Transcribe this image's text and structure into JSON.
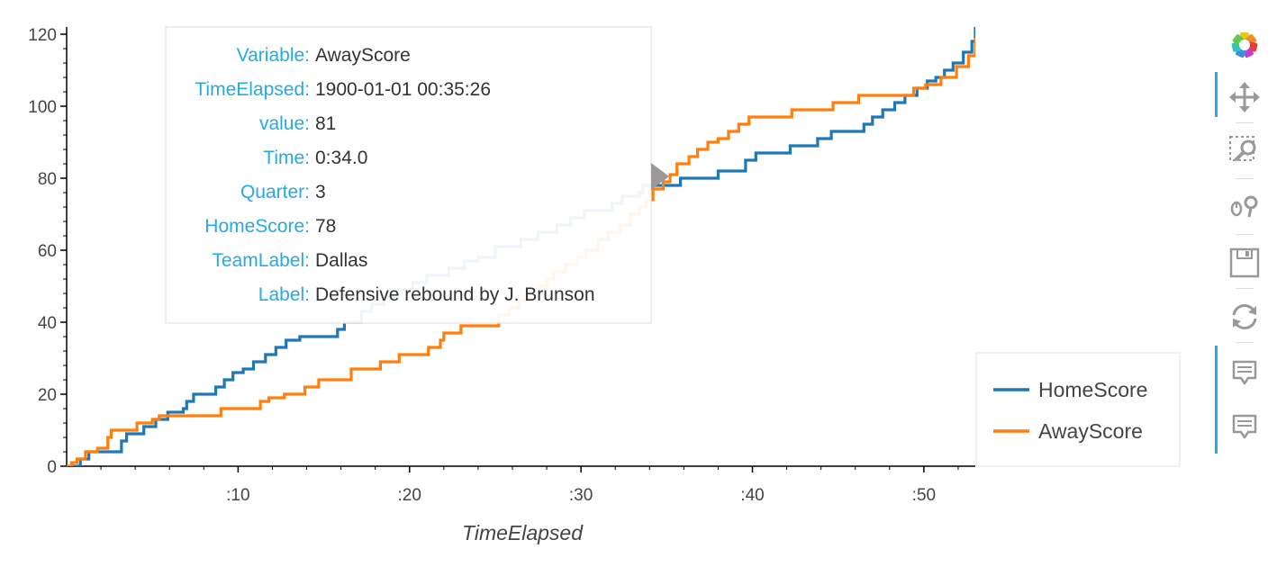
{
  "chart_data": {
    "type": "line",
    "xlabel": "TimeElapsed",
    "x_unit": "minutes",
    "xlim": [
      0,
      53
    ],
    "ylim": [
      0,
      122
    ],
    "x_ticks": [
      {
        "v": 10,
        "label": ":10"
      },
      {
        "v": 20,
        "label": ":20"
      },
      {
        "v": 30,
        "label": ":30"
      },
      {
        "v": 40,
        "label": ":40"
      },
      {
        "v": 50,
        "label": ":50"
      }
    ],
    "y_ticks": [
      0,
      20,
      40,
      60,
      80,
      100,
      120
    ],
    "legend_position": "right",
    "series": [
      {
        "name": "HomeScore",
        "color": "#1f77b4",
        "points": [
          [
            0,
            0
          ],
          [
            0.8,
            2
          ],
          [
            1.3,
            4
          ],
          [
            2.5,
            4
          ],
          [
            3.2,
            7
          ],
          [
            3.5,
            9
          ],
          [
            4.5,
            11
          ],
          [
            5.2,
            13
          ],
          [
            5.9,
            15
          ],
          [
            6.8,
            16
          ],
          [
            7.0,
            18
          ],
          [
            7.4,
            20
          ],
          [
            8.7,
            22
          ],
          [
            9.2,
            24
          ],
          [
            9.7,
            26
          ],
          [
            10.3,
            27
          ],
          [
            10.9,
            29
          ],
          [
            11.6,
            31
          ],
          [
            12.2,
            33
          ],
          [
            12.8,
            35
          ],
          [
            13.6,
            36
          ],
          [
            14.4,
            36
          ],
          [
            15.8,
            38
          ],
          [
            16.2,
            40
          ],
          [
            17.2,
            43
          ],
          [
            17.8,
            45
          ],
          [
            18.5,
            47
          ],
          [
            19.3,
            49
          ],
          [
            20.2,
            51
          ],
          [
            21.0,
            53
          ],
          [
            22.3,
            55
          ],
          [
            23.2,
            57
          ],
          [
            24.0,
            58
          ],
          [
            25.0,
            61
          ],
          [
            26.5,
            63
          ],
          [
            27.5,
            65
          ],
          [
            28.6,
            67
          ],
          [
            29.4,
            69
          ],
          [
            30.2,
            71
          ],
          [
            31.0,
            71
          ],
          [
            31.8,
            73
          ],
          [
            32.4,
            75
          ],
          [
            33.4,
            76
          ],
          [
            33.6,
            78
          ],
          [
            35.4,
            78
          ],
          [
            35.8,
            80
          ],
          [
            37.6,
            80
          ],
          [
            38.0,
            82
          ],
          [
            39.0,
            82
          ],
          [
            39.6,
            85
          ],
          [
            40.2,
            87
          ],
          [
            41.8,
            87
          ],
          [
            42.2,
            89
          ],
          [
            43.4,
            89
          ],
          [
            43.8,
            91
          ],
          [
            44.6,
            93
          ],
          [
            45.8,
            93
          ],
          [
            46.5,
            95
          ],
          [
            47.0,
            97
          ],
          [
            47.6,
            99
          ],
          [
            48.3,
            101
          ],
          [
            48.9,
            103
          ],
          [
            49.6,
            105
          ],
          [
            50.2,
            107
          ],
          [
            50.7,
            108
          ],
          [
            51.2,
            110
          ],
          [
            51.7,
            112
          ],
          [
            52.3,
            115
          ],
          [
            52.8,
            118
          ],
          [
            53.0,
            122
          ]
        ]
      },
      {
        "name": "AwayScore",
        "color": "#ff7f0e",
        "points": [
          [
            0,
            0
          ],
          [
            0.3,
            1
          ],
          [
            0.6,
            2
          ],
          [
            1.1,
            4
          ],
          [
            1.8,
            5
          ],
          [
            2.4,
            8
          ],
          [
            2.6,
            10
          ],
          [
            3.8,
            10
          ],
          [
            4.1,
            12
          ],
          [
            5.0,
            13
          ],
          [
            5.4,
            14
          ],
          [
            9.0,
            16
          ],
          [
            11.3,
            18
          ],
          [
            11.8,
            19
          ],
          [
            12.7,
            20
          ],
          [
            13.9,
            22
          ],
          [
            14.7,
            24
          ],
          [
            16.6,
            27
          ],
          [
            18.3,
            29
          ],
          [
            19.4,
            31
          ],
          [
            21.1,
            33
          ],
          [
            21.8,
            35
          ],
          [
            22.0,
            37
          ],
          [
            23.0,
            39
          ],
          [
            24.6,
            39
          ],
          [
            25.2,
            42
          ],
          [
            25.8,
            44
          ],
          [
            26.4,
            46
          ],
          [
            26.9,
            48
          ],
          [
            27.5,
            50
          ],
          [
            28.0,
            52
          ],
          [
            28.4,
            54
          ],
          [
            29.1,
            56
          ],
          [
            29.8,
            58
          ],
          [
            30.3,
            60
          ],
          [
            31.0,
            63
          ],
          [
            31.6,
            65
          ],
          [
            32.3,
            67
          ],
          [
            32.9,
            70
          ],
          [
            33.4,
            72
          ],
          [
            33.8,
            74
          ],
          [
            34.2,
            77
          ],
          [
            34.8,
            79
          ],
          [
            35.2,
            81
          ],
          [
            35.6,
            84
          ],
          [
            36.3,
            86
          ],
          [
            36.8,
            88
          ],
          [
            37.4,
            90
          ],
          [
            38.0,
            91
          ],
          [
            38.6,
            93
          ],
          [
            39.2,
            95
          ],
          [
            39.8,
            97
          ],
          [
            41.6,
            97
          ],
          [
            42.3,
            99
          ],
          [
            43.7,
            99
          ],
          [
            44.7,
            101
          ],
          [
            46.2,
            103
          ],
          [
            48.7,
            103
          ],
          [
            49.4,
            105
          ],
          [
            50.1,
            106
          ],
          [
            51.0,
            108
          ],
          [
            51.9,
            111
          ],
          [
            52.6,
            114
          ],
          [
            53.0,
            119
          ]
        ]
      }
    ],
    "tooltip": {
      "rows": [
        {
          "key": "Variable:",
          "value": "AwayScore"
        },
        {
          "key": "TimeElapsed:",
          "value": "1900-01-01 00:35:26"
        },
        {
          "key": "value:",
          "value": "81"
        },
        {
          "key": "Time:",
          "value": "0:34.0"
        },
        {
          "key": "Quarter:",
          "value": "3"
        },
        {
          "key": "HomeScore:",
          "value": "78"
        },
        {
          "key": "TeamLabel:",
          "value": "Dallas"
        },
        {
          "key": "Label:",
          "value": "Defensive rebound by J. Brunson"
        }
      ]
    }
  },
  "toolbar": {
    "tools": [
      {
        "name": "bokeh-logo-icon",
        "active": false
      },
      {
        "name": "pan-icon",
        "active": true
      },
      {
        "name": "box-zoom-icon",
        "active": false
      },
      {
        "name": "wheel-zoom-icon",
        "active": false
      },
      {
        "name": "save-icon",
        "active": false
      },
      {
        "name": "reset-icon",
        "active": false
      },
      {
        "name": "hover-icon",
        "active": true
      },
      {
        "name": "hover-icon",
        "active": true
      }
    ]
  }
}
